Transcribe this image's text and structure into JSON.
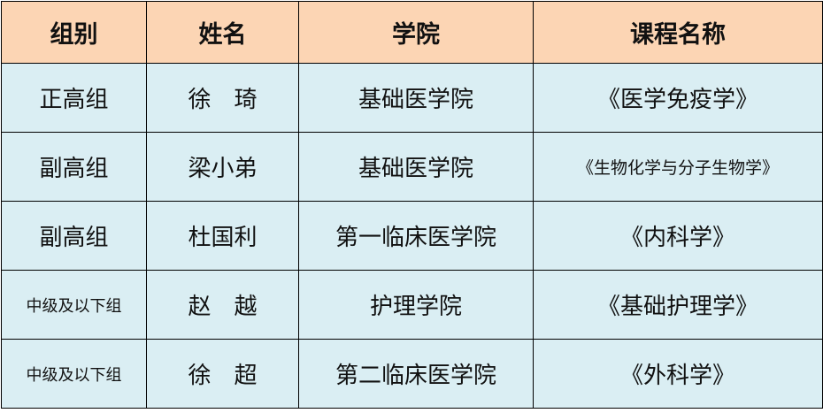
{
  "table": {
    "headers": [
      "组别",
      "姓名",
      "学院",
      "课程名称"
    ],
    "rows": [
      {
        "group": "正高组",
        "name": "徐　琦",
        "college": "基础医学院",
        "course": "《医学免疫学》"
      },
      {
        "group": "副高组",
        "name": "梁小弟",
        "college": "基础医学院",
        "course": "《生物化学与分子生物学》"
      },
      {
        "group": "副高组",
        "name": "杜国利",
        "college": "第一临床医学院",
        "course": "《内科学》"
      },
      {
        "group": "中级及以下组",
        "name": "赵　越",
        "college": "护理学院",
        "course": "《基础护理学》"
      },
      {
        "group": "中级及以下组",
        "name": "徐　超",
        "college": "第二临床医学院",
        "course": "《外科学》"
      }
    ]
  },
  "colors": {
    "header_bg": "#FCD5B4",
    "body_bg": "#DAEEF3",
    "border": "#000000"
  }
}
